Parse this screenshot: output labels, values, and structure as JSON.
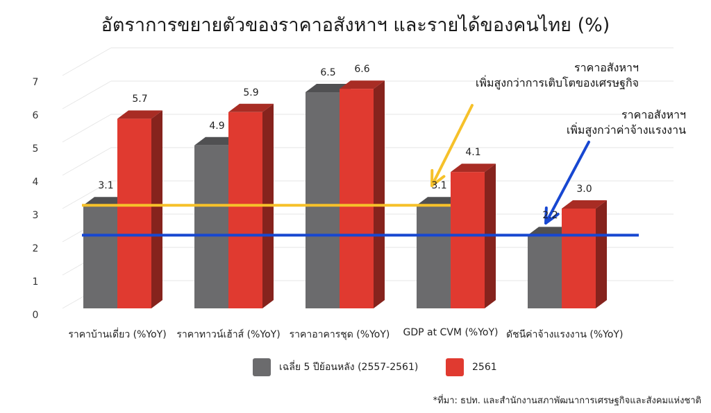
{
  "title": "อัตราการขยายตัวของราคาอสังหาฯ และรายได้ของคนไทย (%)",
  "chart_data": {
    "type": "bar",
    "categories": [
      "ราคาบ้านเดี่ยว (%YoY)",
      "ราคาทาวน์เฮ้าส์ (%YoY)",
      "ราคาอาคารชุด (%YoY)",
      "GDP at CVM (%YoY)",
      "ดัชนีค่าจ้างแรงงาน (%YoY)"
    ],
    "series": [
      {
        "name": "เฉลี่ย 5 ปีย้อนหลัง (2557-2561)",
        "values": [
          3.1,
          4.9,
          6.5,
          3.1,
          2.2
        ],
        "labels": [
          "3.1",
          "4.9",
          "6.5",
          "3.1",
          "2.2"
        ],
        "color": "#6b6b6d"
      },
      {
        "name": "2561",
        "values": [
          5.7,
          5.9,
          6.6,
          4.1,
          3.0
        ],
        "labels": [
          "5.7",
          "5.9",
          "6.6",
          "4.1",
          "3.0"
        ],
        "color": "#e03a30"
      }
    ],
    "ylim": [
      0,
      7
    ],
    "yticks": [
      "0",
      "1",
      "2",
      "3",
      "4",
      "5",
      "6",
      "7"
    ],
    "grid": true,
    "legend_position": "bottom",
    "reference_lines": [
      {
        "value": 3.1,
        "color": "#f6c12a"
      },
      {
        "value": 2.2,
        "color": "#1747d1"
      }
    ]
  },
  "annotations": [
    {
      "lines": [
        "ราคาอสังหาฯ",
        "เพิ่มสูงกว่าการเติบโตของเศรษฐกิจ"
      ],
      "arrow_color": "#f6c12a"
    },
    {
      "lines": [
        "ราคาอสังหาฯ",
        "เพิ่มสูงกว่าค่าจ้างแรงงาน"
      ],
      "arrow_color": "#1747d1"
    }
  ],
  "source": "*ที่มา: ธปท. และสำนักงานสภาพัฒนาการเศรษฐกิจและสังคมแห่งชาติ"
}
